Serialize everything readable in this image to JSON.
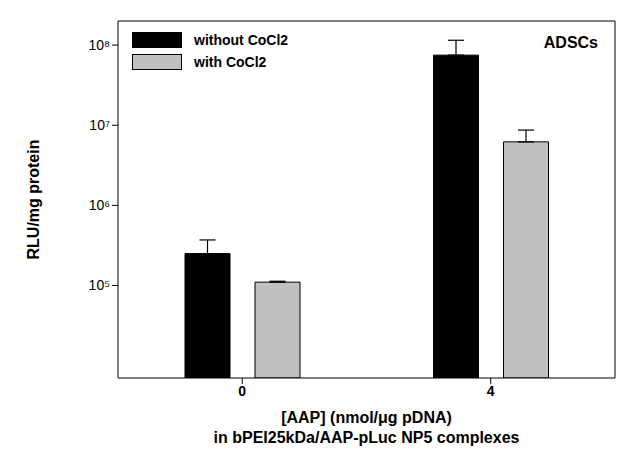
{
  "chart_data": {
    "type": "bar",
    "annotation": "ADSCs",
    "xlabel": [
      "[AAP] (nmol/μg pDNA)",
      "in bPEI25kDa/AAP-pLuc NP5 complexes"
    ],
    "ylabel": "RLU/mg protein",
    "categories": [
      "0",
      "4"
    ],
    "series": [
      {
        "name": "without CoCl2",
        "color": "#000000",
        "values": [
          250000,
          75000000
        ],
        "errors": [
          120000,
          40000000
        ]
      },
      {
        "name": "with CoCl2",
        "color": "#c0c0c0",
        "values": [
          110000,
          6200000
        ],
        "errors": [
          3000,
          2500000
        ]
      }
    ],
    "log": "y",
    "ylim": [
      7000,
      200000000
    ],
    "yticks": [
      {
        "value": 100000,
        "label": "10⁵"
      },
      {
        "value": 1000000,
        "label": "10⁶"
      },
      {
        "value": 10000000,
        "label": "10⁷"
      },
      {
        "value": 100000000,
        "label": "10⁸"
      }
    ],
    "grid": false,
    "legend": "upper left"
  }
}
